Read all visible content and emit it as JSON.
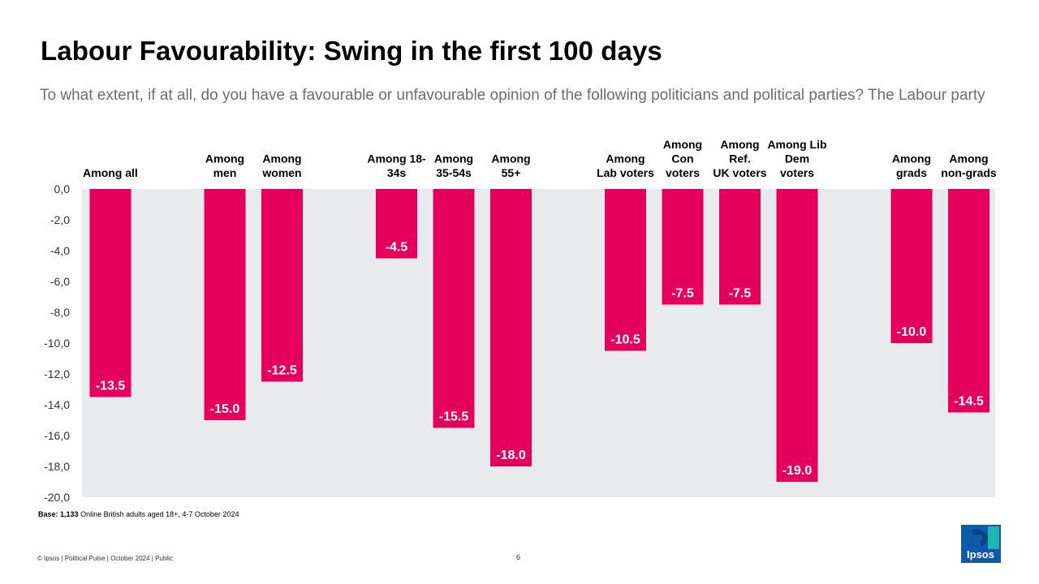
{
  "title": "Labour Favourability: Swing in the first 100 days",
  "subtitle": "To what extent, if at all, do you have a favourable or unfavourable opinion of the following politicians and political parties? The Labour party",
  "chart_data": {
    "type": "bar",
    "title": "Labour Favourability: Swing in the first 100 days",
    "categories": [
      [
        "Among all"
      ],
      [
        "Among",
        "men"
      ],
      [
        "Among",
        "women"
      ],
      [
        "Among 18-",
        "34s"
      ],
      [
        "Among",
        "35-54s"
      ],
      [
        "Among",
        "55+"
      ],
      [
        "Among",
        "Lab voters"
      ],
      [
        "Among",
        "Con",
        "voters"
      ],
      [
        "Among",
        "Ref.",
        "UK voters"
      ],
      [
        "Among Lib",
        "Dem",
        "voters"
      ],
      [
        "Among",
        "grads"
      ],
      [
        "Among",
        "non-grads"
      ]
    ],
    "values": [
      -13.5,
      -15.0,
      -12.5,
      -4.5,
      -15.5,
      -18.0,
      -10.5,
      -7.5,
      -7.5,
      -19.0,
      -10.0,
      -14.5
    ],
    "value_labels": [
      "-13.5",
      "-15.0",
      "-12.5",
      "-4.5",
      "-15.5",
      "-18.0",
      "-10.5",
      "-7.5",
      "-7.5",
      "-19.0",
      "-10.0",
      "-14.5"
    ],
    "groups": [
      0,
      1,
      1,
      2,
      2,
      2,
      3,
      3,
      3,
      3,
      4,
      4
    ],
    "ylim": [
      -20,
      0
    ],
    "yticks": [
      "0,0",
      "-2,0",
      "-4,0",
      "-6,0",
      "-8,0",
      "-10,0",
      "-12,0",
      "-14,0",
      "-16,0",
      "-18,0",
      "-20,0"
    ],
    "xlabel": "",
    "ylabel": "",
    "bar_color": "#e4005a",
    "plot_background": "#e8eaee"
  },
  "base": {
    "label": "Base:",
    "count": "1,133",
    "text": "Online British adults aged 18+,  4-7 October 2024"
  },
  "footer": {
    "copyright": "© Ipsos | Political Pulse | October 2024 | Public",
    "page_number": "6"
  },
  "logo": {
    "text": "Ipsos",
    "color": "#0f5aa8",
    "accent": "#1fb4b4"
  }
}
